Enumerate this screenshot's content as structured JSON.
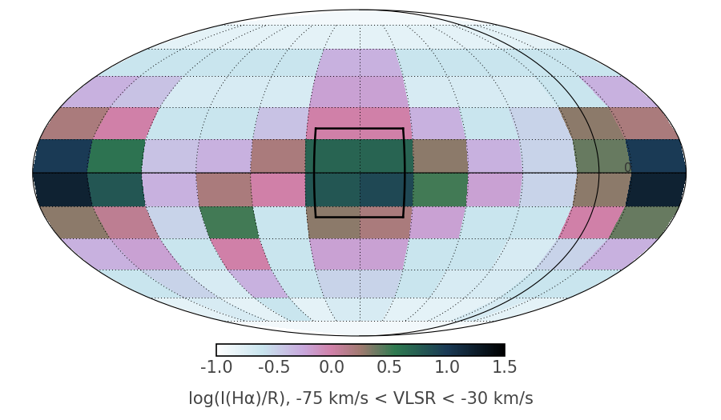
{
  "chart_data": {
    "type": "heatmap",
    "lon_edges": [
      -180,
      -150,
      -120,
      -90,
      -60,
      -30,
      0,
      30,
      60,
      90,
      120,
      150,
      180
    ],
    "lat_edges": [
      -90,
      -75,
      -60,
      -45,
      -30,
      -15,
      0,
      15,
      30,
      45,
      60,
      75,
      90
    ],
    "cells": [
      [
        -0.9,
        -0.9,
        -0.9,
        -0.9,
        -0.9,
        -0.9,
        -0.9,
        -0.9,
        -0.9,
        -0.9,
        -0.9,
        -0.9
      ],
      [
        -0.8,
        -0.7,
        -0.8,
        -0.6,
        -0.8,
        -0.7,
        -0.7,
        -0.8,
        -0.8,
        -0.8,
        -0.7,
        -0.8
      ],
      [
        -0.6,
        -0.5,
        -0.7,
        -0.3,
        -0.6,
        -0.5,
        -0.5,
        -0.6,
        -0.7,
        -0.7,
        -0.6,
        -0.6
      ],
      [
        -0.3,
        -0.2,
        -0.6,
        0.0,
        -0.6,
        -0.2,
        -0.2,
        -0.6,
        -0.6,
        -0.7,
        -0.5,
        -0.3
      ],
      [
        0.3,
        0.1,
        -0.5,
        0.5,
        -0.6,
        0.3,
        0.2,
        -0.2,
        -0.6,
        -0.6,
        0.0,
        0.4
      ],
      [
        1.2,
        0.8,
        -0.3,
        0.2,
        0.0,
        0.8,
        0.9,
        0.5,
        -0.2,
        -0.5,
        0.3,
        1.2
      ],
      [
        1.0,
        0.6,
        -0.4,
        -0.3,
        0.2,
        0.7,
        0.7,
        0.3,
        -0.3,
        -0.5,
        0.4,
        1.0
      ],
      [
        0.2,
        0.0,
        -0.6,
        -0.6,
        -0.4,
        0.0,
        0.0,
        -0.3,
        -0.6,
        -0.5,
        0.3,
        0.2
      ],
      [
        -0.3,
        -0.4,
        -0.7,
        -0.7,
        -0.7,
        -0.2,
        -0.2,
        -0.7,
        -0.7,
        -0.7,
        -0.6,
        -0.3
      ],
      [
        -0.6,
        -0.6,
        -0.6,
        -0.6,
        -0.6,
        -0.3,
        -0.3,
        -0.6,
        -0.6,
        -0.6,
        -0.6,
        -0.6
      ],
      [
        -0.8,
        -0.8,
        -0.8,
        -0.8,
        -0.8,
        -0.8,
        -0.8,
        -0.8,
        -0.8,
        -0.8,
        -0.8,
        -0.8
      ],
      [
        -0.9,
        -0.9,
        -0.9,
        -0.9,
        -0.9,
        -0.9,
        -0.9,
        -0.9,
        -0.9,
        -0.9,
        -0.9,
        -0.9
      ]
    ],
    "colorbar": {
      "label": "log(I(Hα)/R), -75 km/s < VLSR < -30 km/s",
      "range": [
        -1.0,
        1.5
      ],
      "ticks": [
        {
          "value": -1.0,
          "label": "-1.0"
        },
        {
          "value": -0.5,
          "label": "-0.5"
        },
        {
          "value": 0.0,
          "label": "0.0"
        },
        {
          "value": 0.5,
          "label": "0.5"
        },
        {
          "value": 1.0,
          "label": "1.0"
        },
        {
          "value": 1.5,
          "label": "1.5"
        }
      ]
    },
    "xticks": [
      -150,
      -120,
      -90,
      -60,
      -30,
      0,
      30,
      60,
      90,
      120,
      150
    ],
    "yticks": [
      -75,
      -60,
      -45,
      -30,
      -15,
      0,
      15,
      30,
      45,
      60,
      75
    ],
    "grid": true,
    "tick_labels": false,
    "box": {
      "lon": [
        -25,
        25
      ],
      "lat": [
        -20,
        20
      ]
    },
    "annotations": [
      "0"
    ]
  }
}
